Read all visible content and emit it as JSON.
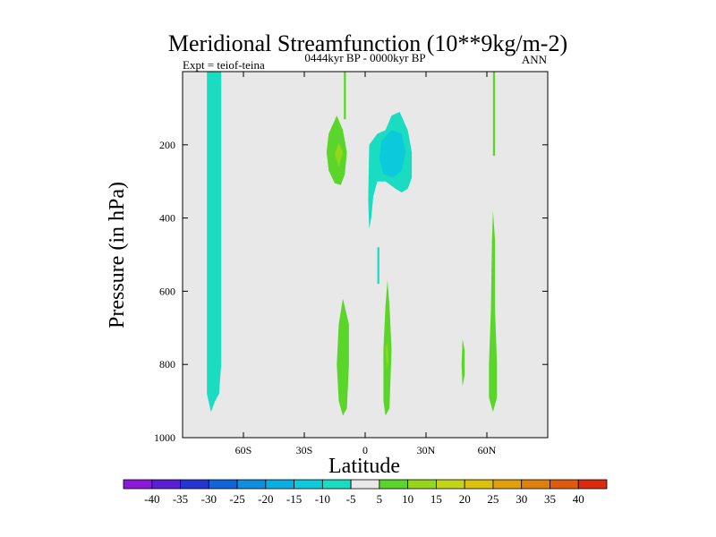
{
  "chart_data": {
    "type": "heatmap",
    "title": "Meridional Streamfunction (10**9kg/m-2)",
    "subtitle_left": "Expt = teiof-teina",
    "subtitle_center": "0444kyr BP - 0000kyr BP",
    "subtitle_right": "ANN",
    "xlabel": "Latitude",
    "ylabel": "Pressure (in hPa)",
    "xlim": [
      -90,
      90
    ],
    "ylim": [
      1000,
      0
    ],
    "x_ticks": [
      {
        "value": -60,
        "label": "60S"
      },
      {
        "value": -30,
        "label": "30S"
      },
      {
        "value": 0,
        "label": "0"
      },
      {
        "value": 30,
        "label": "30N"
      },
      {
        "value": 60,
        "label": "60N"
      }
    ],
    "y_ticks": [
      {
        "value": 200,
        "label": "200"
      },
      {
        "value": 400,
        "label": "400"
      },
      {
        "value": 600,
        "label": "600"
      },
      {
        "value": 800,
        "label": "800"
      },
      {
        "value": 1000,
        "label": "1000"
      }
    ],
    "background_level": "-5 to 5",
    "background_color": "#e8e8e8",
    "colorbar": {
      "labels": [
        "-40",
        "-35",
        "-30",
        "-25",
        "-20",
        "-15",
        "-10",
        "-5",
        "5",
        "10",
        "15",
        "20",
        "25",
        "30",
        "35",
        "40"
      ],
      "colors": [
        "#8b1ad8",
        "#5a1fd4",
        "#2336d4",
        "#1265d8",
        "#0f8ee0",
        "#0aaee2",
        "#0ccadc",
        "#1adcc0",
        "#e8e8e8",
        "#5ad62a",
        "#96d61a",
        "#c4d41a",
        "#dcc00e",
        "#e0a00c",
        "#e0800c",
        "#e05a0c",
        "#dc2a0c"
      ]
    },
    "regions": [
      {
        "name": "sh-polar-negative-cell",
        "level": "-10 to -5",
        "color": "#1adcc0",
        "points": [
          [
            -78,
            0
          ],
          [
            -71,
            0
          ],
          [
            -71,
            400
          ],
          [
            -71,
            800
          ],
          [
            -72,
            880
          ],
          [
            -74,
            900
          ],
          [
            -76,
            930
          ],
          [
            -78,
            880
          ],
          [
            -78,
            600
          ],
          [
            -78,
            300
          ]
        ]
      },
      {
        "name": "sh-tropics-positive-cell",
        "level": "5 to 10",
        "color": "#5ad62a",
        "points": [
          [
            -18,
            170
          ],
          [
            -14,
            120
          ],
          [
            -11,
            160
          ],
          [
            -9,
            220
          ],
          [
            -10,
            280
          ],
          [
            -12,
            310
          ],
          [
            -15,
            305
          ],
          [
            -18,
            270
          ],
          [
            -19,
            220
          ]
        ]
      },
      {
        "name": "sh-tropics-positive-core",
        "level": "10 to 15",
        "color": "#96d61a",
        "points": [
          [
            -15,
            225
          ],
          [
            -13,
            195
          ],
          [
            -11,
            220
          ],
          [
            -13,
            260
          ]
        ]
      },
      {
        "name": "sh-tropics-upper-thin-cell",
        "level": "5 to 10",
        "color": "#5ad62a",
        "points": [
          [
            -10.5,
            0
          ],
          [
            -9.5,
            0
          ],
          [
            -9.5,
            130
          ],
          [
            -10.5,
            130
          ]
        ]
      },
      {
        "name": "nh-tropics-negative-cell",
        "level": "-10 to -5",
        "color": "#1adcc0",
        "points": [
          [
            2,
            200
          ],
          [
            6,
            170
          ],
          [
            10,
            160
          ],
          [
            13,
            120
          ],
          [
            17,
            110
          ],
          [
            21,
            160
          ],
          [
            23,
            220
          ],
          [
            23,
            290
          ],
          [
            21,
            320
          ],
          [
            18,
            330
          ],
          [
            15,
            320
          ],
          [
            10,
            300
          ],
          [
            6,
            300
          ],
          [
            4,
            340
          ],
          [
            3,
            400
          ],
          [
            2,
            430
          ],
          [
            1.5,
            350
          ]
        ]
      },
      {
        "name": "nh-tropics-negative-core",
        "level": "-15 to -10",
        "color": "#0ccadc",
        "points": [
          [
            8,
            190
          ],
          [
            13,
            160
          ],
          [
            18,
            170
          ],
          [
            20,
            220
          ],
          [
            18,
            270
          ],
          [
            14,
            290
          ],
          [
            9,
            280
          ],
          [
            7,
            240
          ]
        ]
      },
      {
        "name": "equator-thin-negative-cell",
        "level": "-10 to -5",
        "color": "#1adcc0",
        "points": [
          [
            6,
            480
          ],
          [
            7,
            480
          ],
          [
            7,
            580
          ],
          [
            6,
            580
          ]
        ]
      },
      {
        "name": "sh-lower-positive-cell",
        "level": "5 to 10",
        "color": "#5ad62a",
        "points": [
          [
            -11,
            620
          ],
          [
            -8,
            690
          ],
          [
            -8,
            800
          ],
          [
            -9,
            920
          ],
          [
            -11,
            940
          ],
          [
            -13,
            900
          ],
          [
            -14,
            800
          ],
          [
            -13,
            690
          ]
        ]
      },
      {
        "name": "nh-lower-positive-cell",
        "level": "5 to 10",
        "color": "#5ad62a",
        "points": [
          [
            11,
            570
          ],
          [
            12,
            640
          ],
          [
            13,
            760
          ],
          [
            12,
            920
          ],
          [
            10,
            940
          ],
          [
            9,
            900
          ],
          [
            9,
            760
          ],
          [
            10,
            640
          ]
        ]
      },
      {
        "name": "nh-lower-positive-core",
        "level": "10 to 15",
        "color": "#96d61a",
        "points": [
          [
            10,
            755
          ],
          [
            11,
            740
          ],
          [
            11.5,
            790
          ],
          [
            10.5,
            810
          ]
        ]
      },
      {
        "name": "nh-midlat-positive-spot",
        "level": "5 to 10",
        "color": "#5ad62a",
        "points": [
          [
            48,
            730
          ],
          [
            49,
            760
          ],
          [
            49,
            830
          ],
          [
            48,
            860
          ],
          [
            47.5,
            800
          ]
        ]
      },
      {
        "name": "nh-upper-thin-positive-cell",
        "level": "5 to 10",
        "color": "#5ad62a",
        "points": [
          [
            63,
            0
          ],
          [
            64,
            0
          ],
          [
            64,
            230
          ],
          [
            63,
            230
          ]
        ]
      },
      {
        "name": "nh-high-lat-positive-cell",
        "level": "5 to 10",
        "color": "#5ad62a",
        "points": [
          [
            63,
            380
          ],
          [
            64,
            460
          ],
          [
            64,
            650
          ],
          [
            65,
            800
          ],
          [
            65,
            890
          ],
          [
            63,
            930
          ],
          [
            61,
            890
          ],
          [
            61,
            800
          ],
          [
            62,
            650
          ],
          [
            62.5,
            460
          ]
        ]
      }
    ]
  }
}
